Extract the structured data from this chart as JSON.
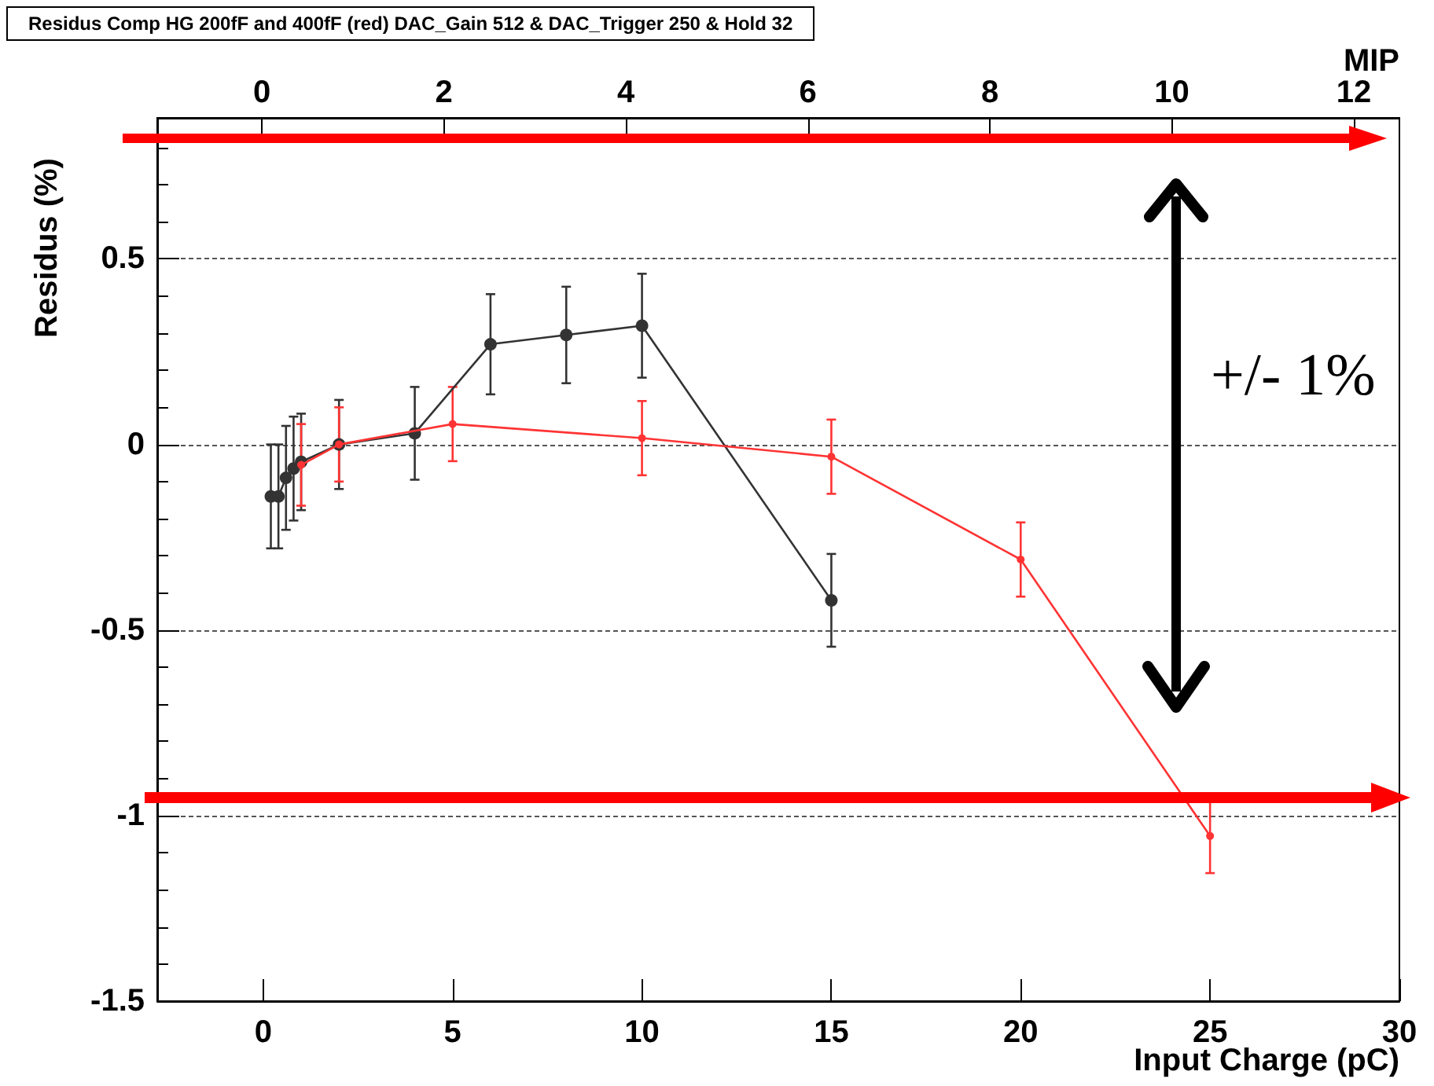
{
  "chart_data": {
    "type": "line",
    "title": "Residus Comp HG 200fF and 400fF (red) DAC_Gain 512 & DAC_Trigger 250 & Hold 32",
    "xlabel": "Input Charge (pC)",
    "ylabel": "Residus (%)",
    "x2label": "MIP",
    "xlim": [
      -2.8,
      30
    ],
    "xticks": [
      0,
      5,
      10,
      15,
      20,
      25,
      30
    ],
    "x2lim": [
      -1.15,
      12.5
    ],
    "x2ticks": [
      0,
      2,
      4,
      6,
      8,
      10,
      12
    ],
    "ylim": [
      -1.5,
      0.88
    ],
    "yticks": [
      -1.5,
      -1,
      -0.5,
      0,
      0.5
    ],
    "grid": "y",
    "marker": "circle",
    "line_style": "solid",
    "series": [
      {
        "color": "#333333",
        "x": [
          0.2,
          0.4,
          0.6,
          0.8,
          1,
          2,
          4,
          6,
          8,
          10,
          15
        ],
        "values": [
          -0.14,
          -0.14,
          -0.09,
          -0.065,
          -0.047,
          0,
          0.03,
          0.27,
          0.295,
          0.32,
          -0.42
        ],
        "errors": [
          0.14,
          0.14,
          0.14,
          0.14,
          0.13,
          0.12,
          0.125,
          0.135,
          0.13,
          0.14,
          0.125
        ]
      },
      {
        "color": "#ff3333",
        "x": [
          1,
          2,
          5,
          10,
          15,
          20,
          25
        ],
        "values": [
          -0.055,
          0,
          0.055,
          0.017,
          -0.033,
          -0.31,
          -1.055
        ],
        "errors": [
          0.11,
          0.1,
          0.1,
          0.1,
          0.1,
          0.1,
          0.1
        ]
      }
    ],
    "annotations": [
      "+/- 1%"
    ]
  }
}
